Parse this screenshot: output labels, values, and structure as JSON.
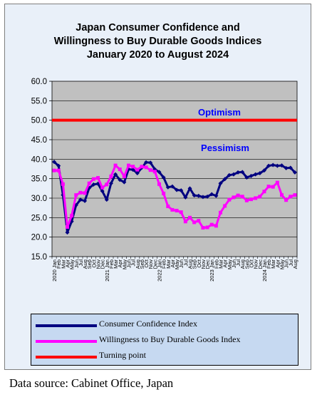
{
  "chart_data": {
    "type": "line",
    "title_lines": [
      "Japan Consumer Confidence and",
      "Willingness to Buy Durable Goods Indices",
      "January 2020 to August  2024"
    ],
    "ylim": [
      15.0,
      60.0
    ],
    "ytick_labels": [
      "15.0",
      "20.0",
      "25.0",
      "30.0",
      "35.0",
      "40.0",
      "45.0",
      "50.0",
      "55.0",
      "60.0"
    ],
    "x": [
      "2020 Jan",
      "Feb",
      "Mar",
      "Apr",
      "May",
      "Jun",
      "Jul",
      "Aug",
      "Sep",
      "Oct",
      "Nov",
      "Dec",
      "2021 Jan",
      "Feb",
      "Mar",
      "Apr",
      "May",
      "Jun",
      "Jul",
      "Aug",
      "Sep",
      "Oct",
      "Nov",
      "Dec",
      "2022 Jan",
      "Feb",
      "Mar",
      "Apr",
      "May",
      "Jun",
      "Jul",
      "Aug",
      "Sep",
      "Oct",
      "Nov",
      "Dec",
      "2023 Jan",
      "Feb",
      "Mar",
      "Apr",
      "May",
      "Jun",
      "Jul",
      "Aug",
      "Sep",
      "Oct",
      "Nov",
      "Dec",
      "2024 Jan",
      "Feb",
      "Mar",
      "Apr",
      "May",
      "Jun",
      "Jul",
      "Aug"
    ],
    "series": [
      {
        "name": "Consumer Confidence Index",
        "color": "#000080",
        "values": [
          39.3,
          38.3,
          30.8,
          21.2,
          24.0,
          28.2,
          29.6,
          29.3,
          32.6,
          33.5,
          33.7,
          31.8,
          29.6,
          33.8,
          36.1,
          34.7,
          34.1,
          37.4,
          37.3,
          36.4,
          37.8,
          39.2,
          39.1,
          37.4,
          36.7,
          35.3,
          32.8,
          33.0,
          32.1,
          32.0,
          30.2,
          32.5,
          30.7,
          30.6,
          30.3,
          30.4,
          31.0,
          30.6,
          33.8,
          34.9,
          35.9,
          36.1,
          36.6,
          36.7,
          35.3,
          35.7,
          36.1,
          36.4,
          37.1,
          38.3,
          38.5,
          38.3,
          38.4,
          37.7,
          37.8,
          36.6
        ]
      },
      {
        "name": "Willingness to Buy Durable Goods Index",
        "color": "#ff00ff",
        "values": [
          37.1,
          37.1,
          33.6,
          22.6,
          25.5,
          30.8,
          31.4,
          31.3,
          33.8,
          34.9,
          35.2,
          32.7,
          33.5,
          35.6,
          38.4,
          37.4,
          35.6,
          38.4,
          38.1,
          37.3,
          38.1,
          37.9,
          37.2,
          36.8,
          33.6,
          31.2,
          27.9,
          27.0,
          26.8,
          26.4,
          24.0,
          25.0,
          23.8,
          24.2,
          22.4,
          22.5,
          23.2,
          22.9,
          26.3,
          28.0,
          29.6,
          30.2,
          30.7,
          30.4,
          29.4,
          29.7,
          30.0,
          30.4,
          31.7,
          33.0,
          32.9,
          34.0,
          30.8,
          29.5,
          30.4,
          30.8
        ]
      },
      {
        "name": "Turning point",
        "color": "#ff0000",
        "values": [
          50,
          50,
          50,
          50,
          50,
          50,
          50,
          50,
          50,
          50,
          50,
          50,
          50,
          50,
          50,
          50,
          50,
          50,
          50,
          50,
          50,
          50,
          50,
          50,
          50,
          50,
          50,
          50,
          50,
          50,
          50,
          50,
          50,
          50,
          50,
          50,
          50,
          50,
          50,
          50,
          50,
          50,
          50,
          50,
          50,
          50,
          50,
          50,
          50,
          50,
          50,
          50,
          50,
          50,
          50,
          50
        ]
      }
    ],
    "annotations": [
      "Optimism",
      "Pessimism"
    ],
    "legend_position": "bottom",
    "grid": "horizontal",
    "plot_background": "#c0c0c0"
  },
  "source": "Data source: Cabinet Office, Japan"
}
